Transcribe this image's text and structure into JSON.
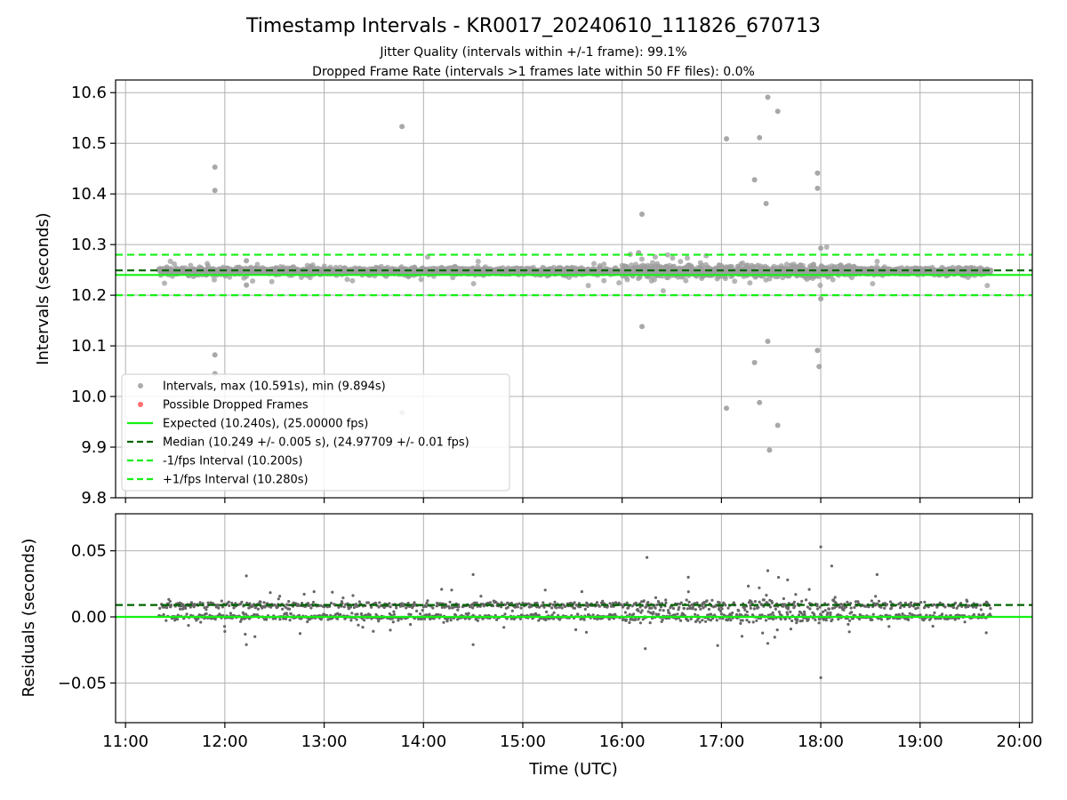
{
  "figure": {
    "title": "Timestamp Intervals - KR0017_20240610_111826_670713",
    "subtitle_1": "Jitter Quality (intervals within +/-1 frame): 99.1%",
    "subtitle_2": "Dropped Frame Rate (intervals >1 frames late within 50 FF files): 0.0%"
  },
  "colors": {
    "points": "#9e9e9e",
    "residual_points": "#666666",
    "dropped": "#ff5555",
    "expected": "#14f014",
    "median": "#006400",
    "fps_bounds": "#14f014",
    "grid": "#b0b0b0"
  },
  "chart_data": [
    {
      "type": "scatter",
      "ylabel": "Intervals (seconds)",
      "ylim": [
        9.8,
        10.625
      ],
      "yticks": [
        9.8,
        9.9,
        10.0,
        10.1,
        10.2,
        10.3,
        10.4,
        10.5,
        10.6
      ],
      "ytick_labels": [
        "9.8",
        "9.9",
        "10.0",
        "10.1",
        "10.2",
        "10.3",
        "10.4",
        "10.5",
        "10.6"
      ],
      "xlim_hours": [
        10.9,
        20.13
      ],
      "xtick_hours": [
        11,
        12,
        13,
        14,
        15,
        16,
        17,
        18,
        19,
        20
      ],
      "grid": true,
      "legend_position": "lower-left",
      "reference_lines": {
        "expected": 10.24,
        "median": 10.249,
        "minus_1fps": 10.2,
        "plus_1fps": 10.28
      },
      "legend": [
        "Intervals, max (10.591s), min (9.894s)",
        "Possible Dropped Frames",
        "Expected (10.240s), (25.00000 fps)",
        "Median (10.249 +/- 0.005 s), (24.97709 +/- 0.01 fps)",
        "-1/fps Interval (10.200s)",
        "+1/fps Interval (10.280s)"
      ],
      "series": [
        {
          "name": "Intervals, max (10.591s), min (9.894s)",
          "band": {
            "x_range": [
              "11:20",
              "19:43"
            ],
            "typical": [
              10.235,
              10.26
            ]
          },
          "outliers": [
            {
              "x": "11:54",
              "y": 10.453
            },
            {
              "x": "11:54",
              "y": 10.407
            },
            {
              "x": "11:54",
              "y": 10.082
            },
            {
              "x": "11:54",
              "y": 10.045
            },
            {
              "x": "12:13",
              "y": 10.268
            },
            {
              "x": "12:13",
              "y": 10.22
            },
            {
              "x": "13:47",
              "y": 10.533
            },
            {
              "x": "13:47",
              "y": 9.968
            },
            {
              "x": "16:12",
              "y": 10.36
            },
            {
              "x": "16:12",
              "y": 10.138
            },
            {
              "x": "16:10",
              "y": 10.284
            },
            {
              "x": "17:03",
              "y": 10.509
            },
            {
              "x": "17:03",
              "y": 9.977
            },
            {
              "x": "17:20",
              "y": 10.428
            },
            {
              "x": "17:20",
              "y": 10.067
            },
            {
              "x": "17:23",
              "y": 10.511
            },
            {
              "x": "17:23",
              "y": 9.988
            },
            {
              "x": "17:27",
              "y": 10.381
            },
            {
              "x": "17:28",
              "y": 10.591
            },
            {
              "x": "17:28",
              "y": 10.109
            },
            {
              "x": "17:29",
              "y": 9.894
            },
            {
              "x": "17:34",
              "y": 10.563
            },
            {
              "x": "17:34",
              "y": 9.943
            },
            {
              "x": "17:58",
              "y": 10.441
            },
            {
              "x": "17:58",
              "y": 10.411
            },
            {
              "x": "17:58",
              "y": 10.091
            },
            {
              "x": "17:59",
              "y": 10.059
            },
            {
              "x": "18:00",
              "y": 10.293
            },
            {
              "x": "18:00",
              "y": 10.193
            }
          ]
        },
        {
          "name": "Possible Dropped Frames",
          "points": []
        }
      ]
    },
    {
      "type": "scatter",
      "ylabel": "Residuals (seconds)",
      "xlabel": "Time (UTC)",
      "ylim": [
        -0.08,
        0.078
      ],
      "yticks": [
        -0.05,
        0.0,
        0.05
      ],
      "ytick_labels": [
        "−0.05",
        "0.00",
        "0.05"
      ],
      "xlim_hours": [
        10.9,
        20.13
      ],
      "xtick_hours": [
        11,
        12,
        13,
        14,
        15,
        16,
        17,
        18,
        19,
        20
      ],
      "xtick_labels": [
        "11:00",
        "12:00",
        "13:00",
        "14:00",
        "15:00",
        "16:00",
        "17:00",
        "18:00",
        "19:00",
        "20:00"
      ],
      "grid": true,
      "reference_lines": {
        "zero": 0.0,
        "median_offset": 0.009
      },
      "series": [
        {
          "name": "Residuals",
          "band": {
            "x_range": [
              "11:20",
              "19:43"
            ],
            "clusters": [
              0.0,
              0.009
            ]
          },
          "outliers": [
            {
              "x": "18:00",
              "y": 0.053
            },
            {
              "x": "18:00",
              "y": -0.046
            },
            {
              "x": "16:15",
              "y": 0.045
            },
            {
              "x": "16:14",
              "y": -0.024
            },
            {
              "x": "12:13",
              "y": 0.031
            },
            {
              "x": "12:13",
              "y": -0.021
            },
            {
              "x": "14:30",
              "y": 0.032
            },
            {
              "x": "14:30",
              "y": -0.021
            },
            {
              "x": "17:28",
              "y": 0.035
            },
            {
              "x": "17:28",
              "y": -0.02
            },
            {
              "x": "18:34",
              "y": 0.032
            },
            {
              "x": "17:40",
              "y": 0.028
            },
            {
              "x": "16:40",
              "y": 0.03
            },
            {
              "x": "19:40",
              "y": -0.012
            },
            {
              "x": "12:00",
              "y": -0.011
            },
            {
              "x": "13:40",
              "y": -0.01
            }
          ]
        }
      ]
    }
  ]
}
